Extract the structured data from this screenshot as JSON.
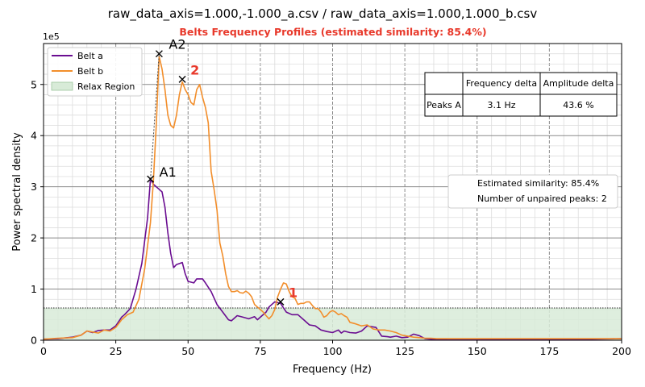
{
  "colors": {
    "belt_a": "#6a0d91",
    "belt_b": "#f28e2b",
    "relax_fill": "#d8ebd8",
    "accent_red": "#e8392b"
  },
  "chart_data": {
    "type": "line",
    "title": "raw_data_axis=1.000,-1.000_a.csv / raw_data_axis=1.000,1.000_b.csv",
    "subtitle": "Belts Frequency Profiles (estimated similarity: 85.4%)",
    "xlabel": "Frequency (Hz)",
    "ylabel": "Power spectral density",
    "y_offset_text": "1e5",
    "xlim": [
      0,
      200
    ],
    "ylim": [
      0,
      5.8
    ],
    "xticks": [
      0,
      25,
      50,
      75,
      100,
      125,
      150,
      175,
      200
    ],
    "yticks": [
      0,
      1,
      2,
      3,
      4,
      5
    ],
    "grid": true,
    "legend_position": "top-left",
    "legend": [
      "Belt a",
      "Belt b",
      "Relax Region"
    ],
    "relax_region_level": 0.63,
    "series": [
      {
        "name": "Belt a",
        "x": [
          0,
          5,
          10,
          13,
          15,
          17,
          19,
          21,
          23,
          25,
          27,
          28,
          30,
          32,
          34,
          36,
          37,
          38,
          40,
          41,
          42,
          43,
          44,
          45,
          46,
          48,
          49,
          50,
          52,
          53,
          55,
          56,
          58,
          60,
          62,
          64,
          65,
          67,
          69,
          71,
          73,
          74,
          75,
          77,
          78,
          80,
          82,
          84,
          86,
          88,
          90,
          92,
          94,
          96,
          98,
          100,
          102,
          103,
          104,
          106,
          108,
          110,
          112,
          113,
          115,
          117,
          119,
          120,
          122,
          124,
          126,
          128,
          130,
          132,
          134,
          136,
          140,
          150,
          160,
          170,
          180,
          190,
          200
        ],
        "y": [
          0.02,
          0.03,
          0.06,
          0.1,
          0.18,
          0.15,
          0.19,
          0.2,
          0.2,
          0.28,
          0.45,
          0.5,
          0.62,
          1.0,
          1.5,
          2.4,
          3.15,
          3.05,
          2.95,
          2.9,
          2.6,
          2.1,
          1.7,
          1.42,
          1.48,
          1.52,
          1.3,
          1.15,
          1.12,
          1.2,
          1.2,
          1.12,
          0.95,
          0.7,
          0.55,
          0.4,
          0.38,
          0.48,
          0.45,
          0.42,
          0.46,
          0.4,
          0.45,
          0.55,
          0.65,
          0.75,
          0.72,
          0.55,
          0.5,
          0.5,
          0.4,
          0.3,
          0.28,
          0.2,
          0.17,
          0.15,
          0.2,
          0.14,
          0.18,
          0.15,
          0.14,
          0.18,
          0.28,
          0.27,
          0.25,
          0.08,
          0.07,
          0.06,
          0.08,
          0.05,
          0.06,
          0.12,
          0.09,
          0.03,
          0.02,
          0.02,
          0.01,
          0.01,
          0.02,
          0.02,
          0.02,
          0.02,
          0.03
        ]
      },
      {
        "name": "Belt b",
        "x": [
          0,
          5,
          10,
          13,
          15,
          17,
          19,
          21,
          23,
          25,
          27,
          29,
          31,
          33,
          35,
          37,
          38,
          39,
          40,
          41,
          42,
          43,
          44,
          45,
          46,
          47,
          48,
          49,
          50,
          51,
          52,
          53,
          54,
          55,
          56,
          57,
          58,
          59,
          60,
          61,
          62,
          63,
          64,
          65,
          66,
          67,
          68,
          69,
          70,
          71,
          72,
          73,
          74,
          75,
          76,
          77,
          78,
          79,
          80,
          81,
          82,
          83,
          84,
          85,
          86,
          87,
          88,
          89,
          90,
          91,
          92,
          93,
          94,
          95,
          96,
          97,
          98,
          99,
          100,
          101,
          102,
          103,
          104,
          105,
          106,
          108,
          110,
          112,
          114,
          116,
          118,
          120,
          122,
          124,
          126,
          128,
          130,
          132,
          134,
          136,
          140,
          150,
          160,
          170,
          180,
          190,
          200
        ],
        "y": [
          0.02,
          0.04,
          0.05,
          0.1,
          0.18,
          0.16,
          0.14,
          0.2,
          0.18,
          0.25,
          0.4,
          0.5,
          0.55,
          0.8,
          1.4,
          2.3,
          3.1,
          4.2,
          5.55,
          5.3,
          4.9,
          4.4,
          4.2,
          4.15,
          4.4,
          4.8,
          5.05,
          4.9,
          4.8,
          4.65,
          4.6,
          4.9,
          5.0,
          4.75,
          4.55,
          4.25,
          3.3,
          2.95,
          2.55,
          1.9,
          1.65,
          1.3,
          1.05,
          0.95,
          0.95,
          0.97,
          0.93,
          0.92,
          0.96,
          0.92,
          0.85,
          0.7,
          0.65,
          0.6,
          0.55,
          0.48,
          0.42,
          0.48,
          0.6,
          0.85,
          1.0,
          1.12,
          1.1,
          0.95,
          0.85,
          0.82,
          0.7,
          0.72,
          0.72,
          0.75,
          0.75,
          0.68,
          0.62,
          0.62,
          0.55,
          0.45,
          0.48,
          0.55,
          0.58,
          0.55,
          0.5,
          0.52,
          0.48,
          0.45,
          0.35,
          0.32,
          0.28,
          0.3,
          0.22,
          0.2,
          0.2,
          0.18,
          0.15,
          0.1,
          0.08,
          0.06,
          0.05,
          0.04,
          0.04,
          0.03,
          0.03,
          0.03,
          0.03,
          0.03,
          0.03,
          0.03,
          0.03
        ]
      }
    ],
    "peaks": [
      {
        "label": "A1",
        "x": 37,
        "y": 3.15,
        "paired": false
      },
      {
        "label": "A2",
        "x": 40,
        "y": 5.6,
        "paired": false
      },
      {
        "label": "2",
        "x": 48,
        "y": 5.1,
        "paired": true
      },
      {
        "label": "1",
        "x": 82,
        "y": 0.75,
        "paired": true
      }
    ],
    "peak_table": {
      "headers": [
        "",
        "Frequency delta",
        "Amplitude delta"
      ],
      "rows": [
        [
          "Peaks A",
          "3.1 Hz",
          "43.6 %"
        ]
      ]
    },
    "info_box": [
      "Estimated similarity: 85.4%",
      "Number of unpaired peaks: 2"
    ]
  }
}
